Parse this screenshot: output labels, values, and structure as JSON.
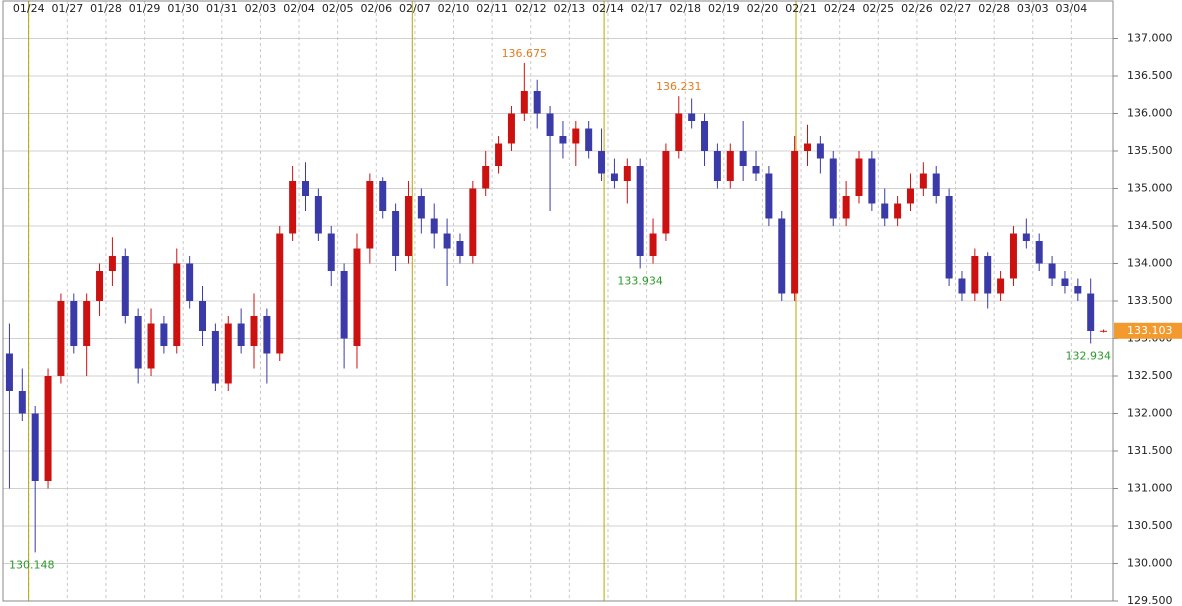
{
  "chart_data": {
    "type": "candlestick",
    "categories": [
      null,
      null,
      "01/24",
      null,
      null,
      "01/27",
      null,
      null,
      "01/28",
      null,
      null,
      "01/29",
      null,
      null,
      "01/30",
      null,
      null,
      "01/31",
      null,
      null,
      "02/03",
      null,
      null,
      "02/04",
      null,
      null,
      "02/05",
      null,
      null,
      "02/06",
      null,
      null,
      "02/07",
      null,
      null,
      "02/10",
      null,
      null,
      "02/11",
      null,
      null,
      "02/12",
      null,
      null,
      "02/13",
      null,
      null,
      "02/14",
      null,
      null,
      "02/17",
      null,
      null,
      "02/18",
      null,
      null,
      "02/19",
      null,
      null,
      "02/20",
      null,
      null,
      "02/21",
      null,
      null,
      "02/24",
      null,
      null,
      "02/25",
      null,
      null,
      "02/26",
      null,
      null,
      "02/27",
      null,
      null,
      "02/28",
      null,
      null,
      "03/03",
      null,
      null,
      "03/04",
      null,
      null
    ],
    "open": [
      132.8,
      132.3,
      132.0,
      131.1,
      132.5,
      133.5,
      132.9,
      133.5,
      133.9,
      134.1,
      133.3,
      132.6,
      133.2,
      132.9,
      134.0,
      133.5,
      133.1,
      132.4,
      133.2,
      132.9,
      133.3,
      132.8,
      134.4,
      135.1,
      134.9,
      134.4,
      133.9,
      132.9,
      134.2,
      135.1,
      134.7,
      134.1,
      134.9,
      134.6,
      134.4,
      134.3,
      134.1,
      135.0,
      135.3,
      135.6,
      136.0,
      136.3,
      136.0,
      135.7,
      135.6,
      135.8,
      135.5,
      135.2,
      135.1,
      135.3,
      134.1,
      134.4,
      135.5,
      136.0,
      135.9,
      135.5,
      135.1,
      135.5,
      135.3,
      135.2,
      134.6,
      133.6,
      135.5,
      135.6,
      135.4,
      134.6,
      134.9,
      135.4,
      134.8,
      134.6,
      134.8,
      135.0,
      135.2,
      134.9,
      133.8,
      133.6,
      134.1,
      133.6,
      133.8,
      134.4,
      134.3,
      134.0,
      133.8,
      133.7,
      133.6,
      133.1
    ],
    "high": [
      133.2,
      132.6,
      132.1,
      132.6,
      133.6,
      133.6,
      133.6,
      134.0,
      134.35,
      134.2,
      133.4,
      133.4,
      133.3,
      134.2,
      134.1,
      133.7,
      133.2,
      133.3,
      133.4,
      133.6,
      133.4,
      134.5,
      135.3,
      135.35,
      135.0,
      134.5,
      134.0,
      134.4,
      135.2,
      135.15,
      134.8,
      135.1,
      135.0,
      134.8,
      134.6,
      134.4,
      135.1,
      135.5,
      135.7,
      136.1,
      136.675,
      136.45,
      136.1,
      135.9,
      135.9,
      135.9,
      135.8,
      135.4,
      135.4,
      135.4,
      134.6,
      135.6,
      136.231,
      136.2,
      136.0,
      135.6,
      135.6,
      135.9,
      135.5,
      135.3,
      134.7,
      135.7,
      135.85,
      135.7,
      135.5,
      135.1,
      135.5,
      135.5,
      135.0,
      134.9,
      135.2,
      135.35,
      135.3,
      135.0,
      133.9,
      134.2,
      134.15,
      133.9,
      134.5,
      134.6,
      134.4,
      134.1,
      133.9,
      133.8,
      133.8,
      133.12
    ],
    "low": [
      131.0,
      131.9,
      130.148,
      131.0,
      132.4,
      132.8,
      132.5,
      133.3,
      133.7,
      133.2,
      132.4,
      132.5,
      132.8,
      132.8,
      133.4,
      132.9,
      132.3,
      132.3,
      132.8,
      132.6,
      132.4,
      132.7,
      134.3,
      134.7,
      134.3,
      133.7,
      132.6,
      132.6,
      134.0,
      134.6,
      133.9,
      134.0,
      134.4,
      134.2,
      133.7,
      134.0,
      134.0,
      134.9,
      135.2,
      135.5,
      135.9,
      135.8,
      134.7,
      135.4,
      135.3,
      135.4,
      135.1,
      135.0,
      134.8,
      133.934,
      134.0,
      134.3,
      135.4,
      135.8,
      135.3,
      135.0,
      135.0,
      135.1,
      135.1,
      134.5,
      133.5,
      133.5,
      135.3,
      135.2,
      134.5,
      134.5,
      134.8,
      134.7,
      134.5,
      134.5,
      134.7,
      134.9,
      134.8,
      133.7,
      133.5,
      133.5,
      133.4,
      133.5,
      133.7,
      134.2,
      133.9,
      133.7,
      133.6,
      133.5,
      132.934,
      133.08
    ],
    "close": [
      132.3,
      132.0,
      131.1,
      132.5,
      133.5,
      132.9,
      133.5,
      133.9,
      134.1,
      133.3,
      132.6,
      133.2,
      132.9,
      134.0,
      133.5,
      133.1,
      132.4,
      133.2,
      132.9,
      133.3,
      132.8,
      134.4,
      135.1,
      134.9,
      134.4,
      133.9,
      133.0,
      134.2,
      135.1,
      134.7,
      134.1,
      134.9,
      134.6,
      134.4,
      134.2,
      134.1,
      135.0,
      135.3,
      135.6,
      136.0,
      136.3,
      136.0,
      135.7,
      135.6,
      135.8,
      135.5,
      135.2,
      135.1,
      135.3,
      134.1,
      134.4,
      135.5,
      136.0,
      135.9,
      135.5,
      135.1,
      135.5,
      135.3,
      135.2,
      134.6,
      133.6,
      135.5,
      135.6,
      135.4,
      134.6,
      134.9,
      135.4,
      134.8,
      134.6,
      134.8,
      135.0,
      135.2,
      134.9,
      133.8,
      133.6,
      134.1,
      133.6,
      133.8,
      134.4,
      134.3,
      134.0,
      133.8,
      133.7,
      133.6,
      133.1,
      133.103
    ],
    "up_color": "#cc1111",
    "down_color": "#3a3aa8",
    "ylim": [
      129.5,
      137.5
    ],
    "yticks": [
      {
        "value": 129.5,
        "label": "129.500"
      },
      {
        "value": 130,
        "label": "130.000"
      },
      {
        "value": 130.5,
        "label": "130.500"
      },
      {
        "value": 131,
        "label": "131.000"
      },
      {
        "value": 131.5,
        "label": "131.500"
      },
      {
        "value": 132,
        "label": "132.000"
      },
      {
        "value": 132.5,
        "label": "132.500"
      },
      {
        "value": 133,
        "label": "133.000"
      },
      {
        "value": 133.5,
        "label": "133.500"
      },
      {
        "value": 134,
        "label": "134.000"
      },
      {
        "value": 134.5,
        "label": "134.500"
      },
      {
        "value": 135,
        "label": "135.000"
      },
      {
        "value": 135.5,
        "label": "135.500"
      },
      {
        "value": 136,
        "label": "136.000"
      },
      {
        "value": 136.5,
        "label": "136.500"
      },
      {
        "value": 137,
        "label": "137.000"
      }
    ],
    "grid": true,
    "high_labels": [
      136.675,
      136.231
    ],
    "high_label_color": "#e07b20",
    "low_labels": [
      130.148,
      133.934,
      132.934
    ],
    "low_label_color": "#2a9a2a",
    "last_price": 133.103,
    "last_price_color": "#f39a2e"
  }
}
